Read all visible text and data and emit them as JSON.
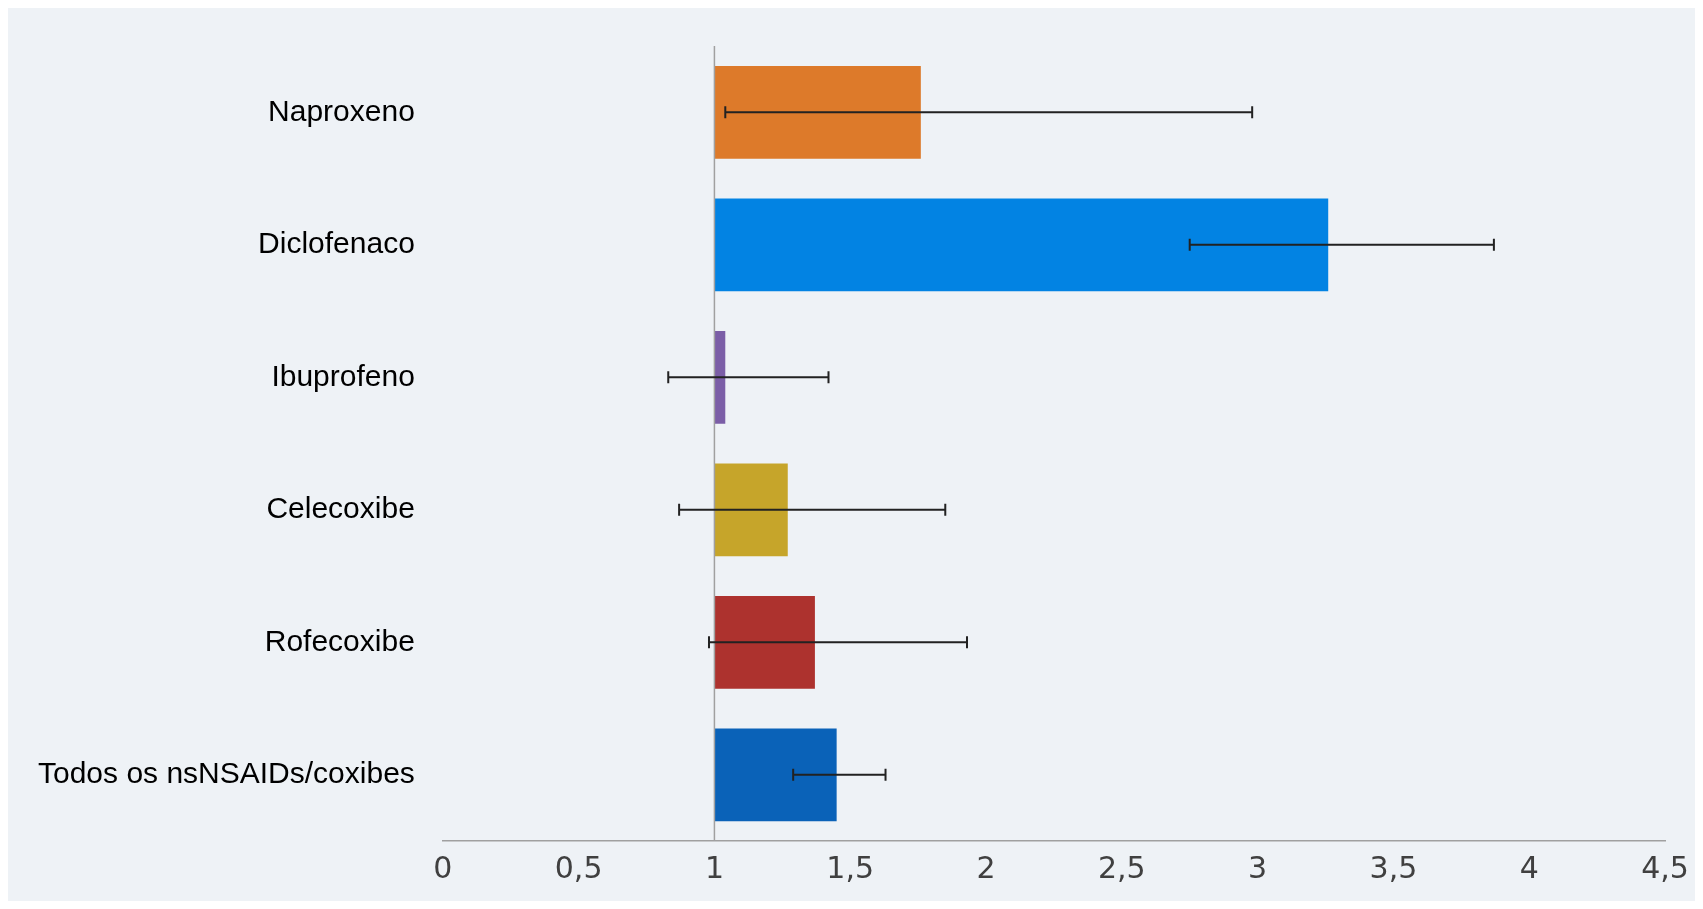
{
  "chart_data": {
    "type": "bar",
    "orientation": "horizontal",
    "categories": [
      "Naproxeno",
      "Diclofenaco",
      "Ibuprofeno",
      "Celecoxibe",
      "Rofecoxibe",
      "Todos os nsNSAIDs/coxibes"
    ],
    "base": [
      1,
      1,
      1,
      1,
      1,
      1
    ],
    "values": [
      0.76,
      2.26,
      0.04,
      0.27,
      0.37,
      0.45
    ],
    "colors": [
      "#dd7a2a",
      "#0283e3",
      "#7b5ea7",
      "#c6a52a",
      "#ad322e",
      "#0a62b8"
    ],
    "errors": [
      [
        1.04,
        2.98
      ],
      [
        2.75,
        3.87
      ],
      [
        0.83,
        1.42
      ],
      [
        0.87,
        1.85
      ],
      [
        0.98,
        1.93
      ],
      [
        1.29,
        1.63
      ]
    ],
    "xlim": [
      0,
      4.5
    ],
    "xticks": [
      0,
      {
        "value": 0.5,
        "label": "0,5"
      },
      1,
      {
        "value": 1.5,
        "label": "1,5"
      },
      2,
      {
        "value": 2.5,
        "label": "2,5"
      },
      3,
      {
        "value": 3.5,
        "label": "3,5"
      },
      4,
      {
        "value": 4.5,
        "label": "4,5"
      }
    ],
    "ref_lines": [
      {
        "axis": "x",
        "value": 1,
        "color": "#a0a0a0"
      }
    ],
    "grid": false,
    "legend": false
  }
}
